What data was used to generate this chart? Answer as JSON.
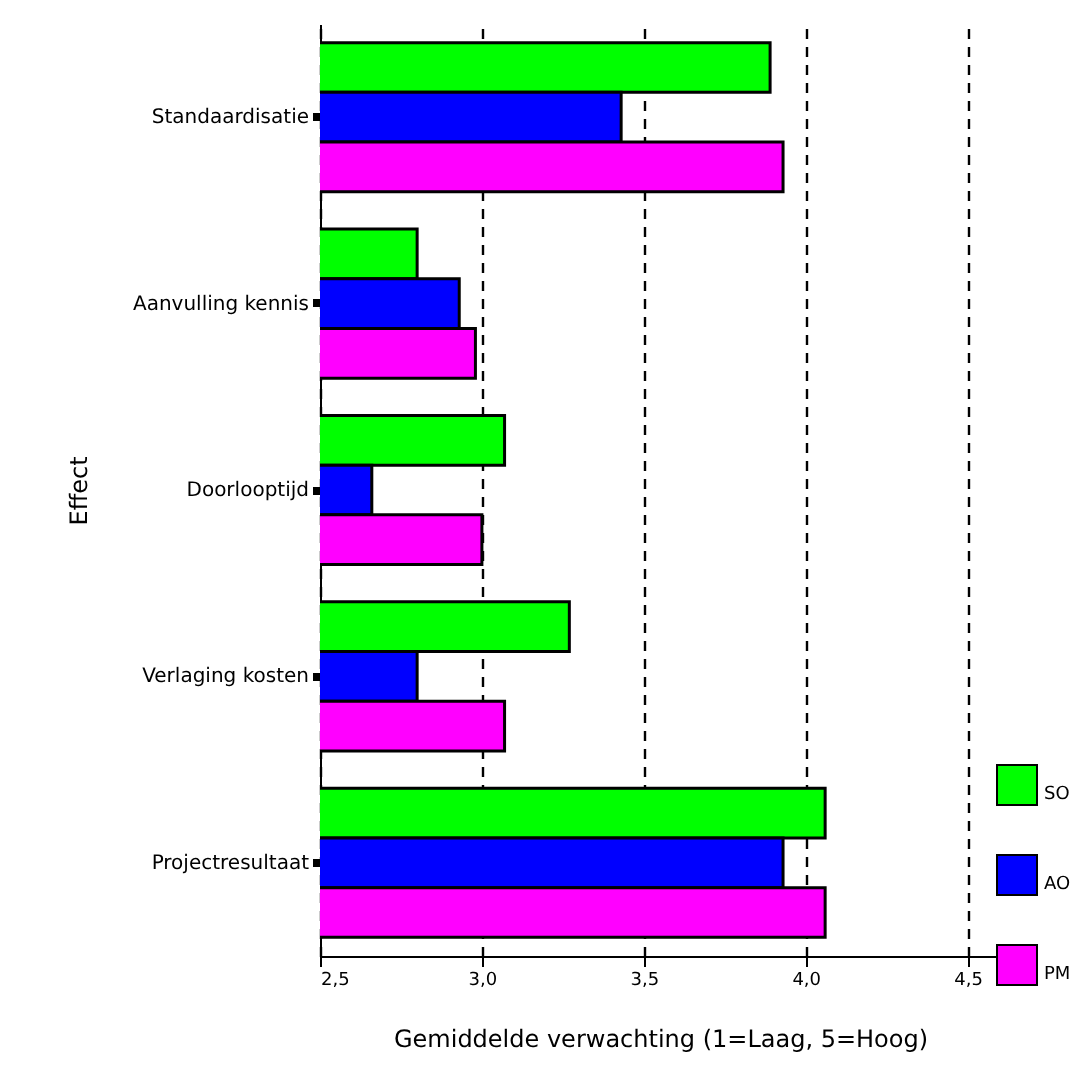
{
  "chart_data": {
    "type": "bar",
    "orientation": "horizontal",
    "xlabel": "Gemiddelde verwachting (1=Laag, 5=Hoog)",
    "ylabel": "Effect",
    "categories": [
      "Standaardisatie",
      "Aanvulling kennis",
      "Doorlooptijd",
      "Verlaging kosten",
      "Projectresultaat"
    ],
    "series": [
      {
        "name": "SO",
        "color": "#00ff00",
        "values": [
          3.89,
          2.8,
          3.07,
          3.27,
          4.06
        ]
      },
      {
        "name": "AO",
        "color": "#0000ff",
        "values": [
          3.43,
          2.93,
          2.66,
          2.8,
          3.93
        ]
      },
      {
        "name": "PM",
        "color": "#ff00ff",
        "values": [
          3.93,
          2.98,
          3.0,
          3.07,
          4.06
        ]
      }
    ],
    "xlim": [
      2.5,
      4.6
    ],
    "xticks": [
      {
        "value": 2.5,
        "label": "2,5"
      },
      {
        "value": 3.0,
        "label": "3,0"
      },
      {
        "value": 3.5,
        "label": "3,5"
      },
      {
        "value": 4.0,
        "label": "4,0"
      },
      {
        "value": 4.5,
        "label": "4,5"
      }
    ],
    "grid": "x",
    "legend": "bottom right"
  }
}
